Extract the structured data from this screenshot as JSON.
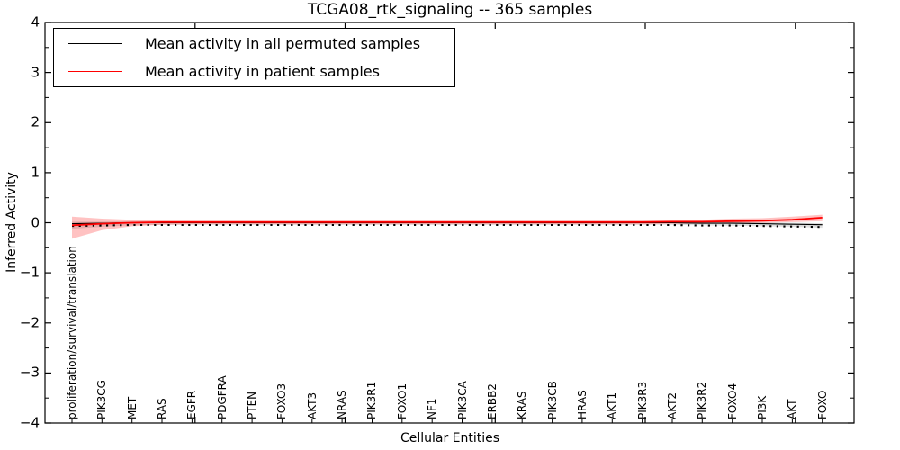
{
  "figure": {
    "title": "TCGA08_rtk_signaling -- 365 samples",
    "xlabel": "Cellular Entities",
    "ylabel": "Inferred Activity"
  },
  "legend": {
    "entries": [
      {
        "label": "Mean activity in all permuted samples",
        "color": "#000000"
      },
      {
        "label": "Mean activity in patient samples",
        "color": "#ff0000"
      }
    ],
    "position": "upper left"
  },
  "chart_data": {
    "type": "line",
    "title": "TCGA08_rtk_signaling -- 365 samples",
    "xlabel": "Cellular Entities",
    "ylabel": "Inferred Activity",
    "ylim": [
      -4,
      4
    ],
    "yticks": [
      4,
      3,
      2,
      1,
      0,
      -1,
      -2,
      -3,
      -4
    ],
    "ytick_labels": [
      "4",
      "3",
      "2",
      "1",
      "0",
      "−1",
      "−2",
      "−3",
      "−4"
    ],
    "grid": false,
    "legend_position": "upper left",
    "categories": [
      "proliferation/survival/translation",
      "PIK3CG",
      "MET",
      "RAS",
      "EGFR",
      "PDGFRA",
      "PTEN",
      "FOXO3",
      "AKT3",
      "NRAS",
      "PIK3R1",
      "FOXO1",
      "NF1",
      "PIK3CA",
      "ERBB2",
      "KRAS",
      "PIK3CB",
      "HRAS",
      "AKT1",
      "PIK3R3",
      "AKT2",
      "PIK3R2",
      "FOXO4",
      "PI3K",
      "AKT",
      "FOXO"
    ],
    "series": [
      {
        "name": "Mean activity in all permuted samples",
        "color": "#000000",
        "values": [
          -0.02,
          -0.01,
          0,
          0,
          0,
          0,
          0,
          0,
          0,
          0,
          0,
          0,
          0,
          0,
          0,
          0,
          0,
          0,
          0,
          0,
          0,
          -0.01,
          -0.01,
          -0.02,
          -0.03,
          -0.04
        ]
      },
      {
        "name": "Mean activity in patient samples",
        "color": "#ff0000",
        "values": [
          -0.05,
          -0.02,
          0.0,
          0.01,
          0.01,
          0.01,
          0.01,
          0.01,
          0.01,
          0.01,
          0.01,
          0.01,
          0.01,
          0.01,
          0.01,
          0.01,
          0.01,
          0.01,
          0.01,
          0.01,
          0.02,
          0.02,
          0.03,
          0.04,
          0.06,
          0.1
        ]
      }
    ],
    "bands": [
      {
        "name": "patient-samples-std-band",
        "color": "#ff0000",
        "opacity": 0.24,
        "upper": [
          0.12,
          0.08,
          0.06,
          0.05,
          0.05,
          0.05,
          0.05,
          0.05,
          0.05,
          0.05,
          0.05,
          0.05,
          0.05,
          0.05,
          0.05,
          0.05,
          0.05,
          0.05,
          0.05,
          0.05,
          0.06,
          0.06,
          0.08,
          0.09,
          0.12,
          0.16
        ],
        "lower": [
          -0.32,
          -0.15,
          -0.07,
          -0.04,
          -0.03,
          -0.03,
          -0.03,
          -0.03,
          -0.03,
          -0.03,
          -0.03,
          -0.03,
          -0.03,
          -0.03,
          -0.03,
          -0.03,
          -0.03,
          -0.03,
          -0.03,
          -0.03,
          -0.02,
          -0.02,
          -0.01,
          0.0,
          0.01,
          0.03
        ]
      },
      {
        "name": "permuted-samples-std-band",
        "color": "#808080",
        "opacity": 0.25,
        "upper": [
          0.02,
          0.02,
          0.03,
          0.03,
          0.03,
          0.03,
          0.03,
          0.03,
          0.03,
          0.03,
          0.03,
          0.03,
          0.03,
          0.03,
          0.03,
          0.03,
          0.03,
          0.03,
          0.03,
          0.03,
          0.03,
          0.02,
          0.02,
          0.01,
          0.0,
          -0.01
        ],
        "lower": [
          -0.12,
          -0.08,
          -0.05,
          -0.04,
          -0.04,
          -0.04,
          -0.04,
          -0.04,
          -0.04,
          -0.04,
          -0.04,
          -0.04,
          -0.04,
          -0.04,
          -0.04,
          -0.04,
          -0.04,
          -0.04,
          -0.04,
          -0.04,
          -0.04,
          -0.05,
          -0.06,
          -0.07,
          -0.08,
          -0.1
        ]
      }
    ]
  }
}
